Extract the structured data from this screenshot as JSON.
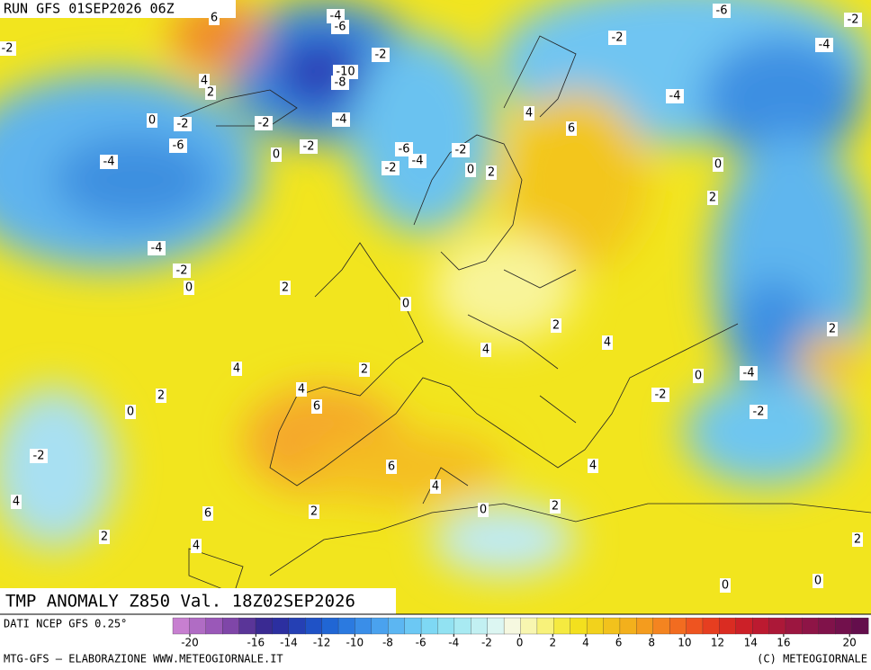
{
  "header": {
    "run": "RUN GFS 01SEP2026 06Z"
  },
  "map": {
    "contour_labels": [
      "-4",
      "-6",
      "-6",
      "-2",
      "-2",
      "6",
      "-2",
      "-4",
      "-2",
      "-10",
      "-8",
      "4",
      "2",
      "-4",
      "0",
      "-2",
      "-2",
      "-4",
      "4",
      "6",
      "-6",
      "-2",
      "-6",
      "-2",
      "0",
      "-4",
      "-2",
      "0",
      "2",
      "0",
      "-4",
      "2",
      "-4",
      "-2",
      "0",
      "2",
      "0",
      "2",
      "4",
      "4",
      "2",
      "4",
      "2",
      "-4",
      "0",
      "4",
      "-2",
      "2",
      "6",
      "-2",
      "0",
      "-2",
      "6",
      "4",
      "4",
      "4",
      "0",
      "2",
      "6",
      "2",
      "2",
      "2",
      "4",
      "0",
      "0"
    ]
  },
  "footer": {
    "title": "TMP ANOMALY Z850 Val. 18Z02SEP2026",
    "source": "DATI NCEP GFS 0.25°",
    "credit": "MTG-GFS — ELABORAZIONE WWW.METEOGIORNALE.IT",
    "copyright": "(C) METEOGIORNALE"
  },
  "colorbar": {
    "ticks": [
      -20,
      -16,
      -14,
      -12,
      -10,
      -8,
      -6,
      -4,
      -2,
      0,
      2,
      4,
      6,
      8,
      10,
      12,
      14,
      16,
      20
    ]
  }
}
